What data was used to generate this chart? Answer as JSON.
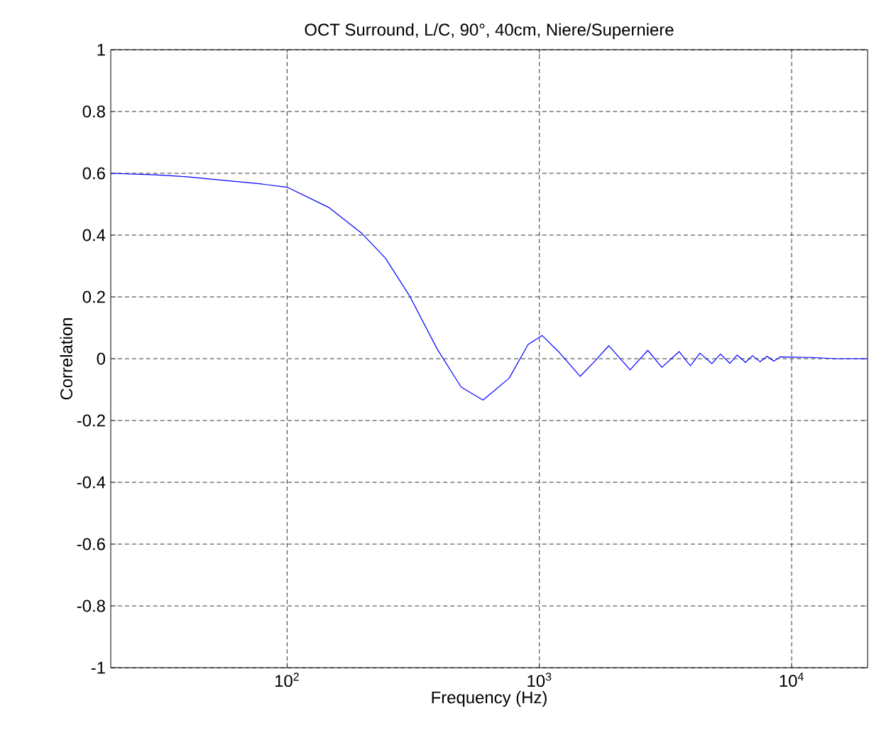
{
  "chart_data": {
    "type": "line",
    "title": "OCT Surround, L/C, 90°, 40cm, Niere/Superniere",
    "xlabel": "Frequency (Hz)",
    "ylabel": "Correlation",
    "log": "x",
    "grid": true,
    "line_style": "solid",
    "marker": "none",
    "xlim": [
      20,
      20000
    ],
    "ylim": [
      -1,
      1
    ],
    "xticks": [
      {
        "value": 100,
        "label": "10$^{2}$"
      },
      {
        "value": 1000,
        "label": "10$^{3}$"
      },
      {
        "value": 10000,
        "label": "10$^{4}$"
      }
    ],
    "yticks": [
      -1,
      -0.8,
      -0.6,
      -0.4,
      -0.2,
      0,
      0.2,
      0.4,
      0.6,
      0.8,
      1
    ],
    "series": [
      {
        "color": "#0000ff",
        "x": [
          20,
          30,
          40,
          60,
          80,
          100,
          146,
          197,
          245,
          305,
          395,
          490,
          598,
          759,
          902,
          1026,
          1200,
          1452,
          1650,
          1884,
          2290,
          2690,
          3060,
          3580,
          3970,
          4330,
          4830,
          5220,
          5690,
          6080,
          6570,
          7000,
          7500,
          8000,
          8500,
          9000,
          10000,
          12000,
          15000,
          20000
        ],
        "values": [
          0.6,
          0.595,
          0.589,
          0.575,
          0.565,
          0.555,
          0.49,
          0.407,
          0.326,
          0.205,
          0.029,
          -0.092,
          -0.134,
          -0.063,
          0.046,
          0.075,
          0.02,
          -0.057,
          -0.01,
          0.042,
          -0.036,
          0.027,
          -0.028,
          0.023,
          -0.023,
          0.018,
          -0.016,
          0.015,
          -0.015,
          0.012,
          -0.012,
          0.01,
          -0.01,
          0.008,
          -0.008,
          0.006,
          0.005,
          0.004,
          0,
          0
        ]
      }
    ]
  }
}
